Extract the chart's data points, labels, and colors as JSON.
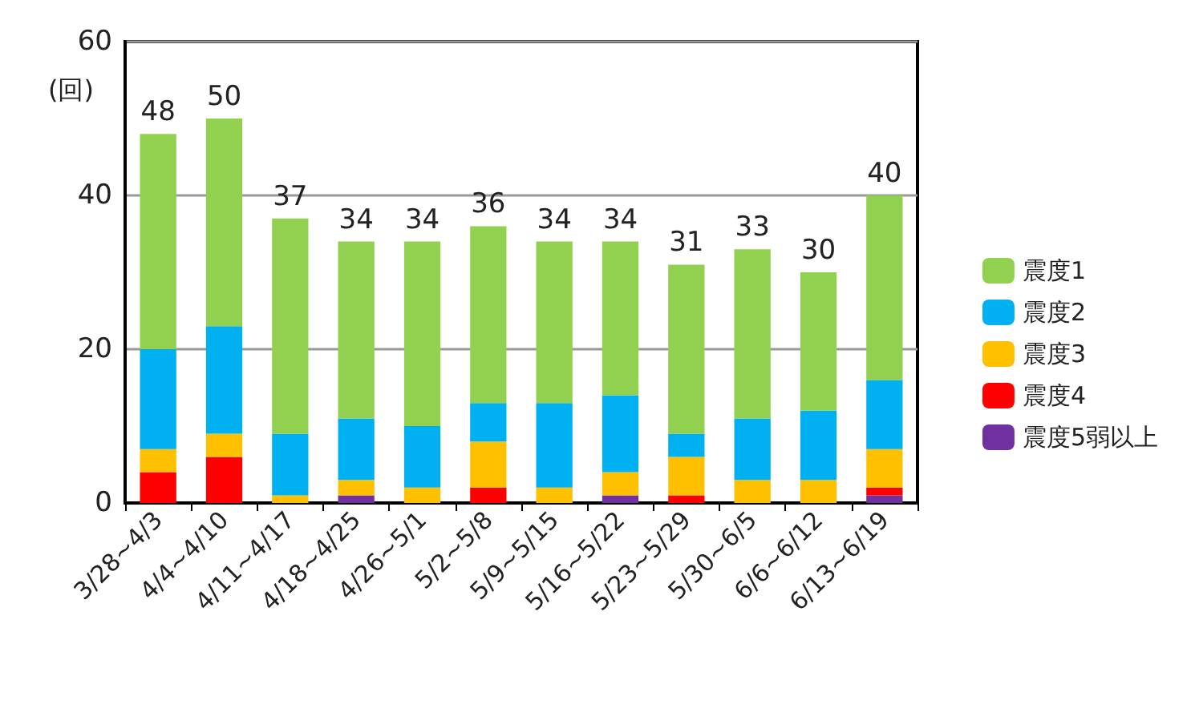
{
  "chart_data": {
    "type": "bar",
    "stacked": true,
    "ylabel": "(回)",
    "categories": [
      "3/28~4/3",
      "4/4~4/10",
      "4/11~4/17",
      "4/18~4/25",
      "4/26~5/1",
      "5/2~5/8",
      "5/9~5/15",
      "5/16~5/22",
      "5/23~5/29",
      "5/30~6/5",
      "6/6~6/12",
      "6/13~6/19"
    ],
    "series": [
      {
        "name": "震度5弱以上",
        "color": "#7030a0",
        "values": [
          0,
          0,
          0,
          1,
          0,
          0,
          0,
          1,
          0,
          0,
          0,
          1
        ]
      },
      {
        "name": "震度4",
        "color": "#ff0000",
        "values": [
          4,
          6,
          0,
          0,
          0,
          2,
          0,
          0,
          1,
          0,
          0,
          1
        ]
      },
      {
        "name": "震度3",
        "color": "#ffc000",
        "values": [
          3,
          3,
          1,
          2,
          2,
          6,
          2,
          3,
          5,
          3,
          3,
          5
        ]
      },
      {
        "name": "震度2",
        "color": "#00b0f0",
        "values": [
          13,
          14,
          8,
          8,
          8,
          5,
          11,
          10,
          3,
          8,
          9,
          9
        ]
      },
      {
        "name": "震度1",
        "color": "#92d050",
        "values": [
          28,
          27,
          28,
          23,
          24,
          23,
          21,
          20,
          22,
          22,
          18,
          24
        ]
      }
    ],
    "totals": [
      "48",
      "50",
      "37",
      "34",
      "34",
      "36",
      "34",
      "34",
      "31",
      "33",
      "30",
      "40"
    ],
    "ylim": [
      0,
      60
    ],
    "yticks": [
      0,
      20,
      40,
      60
    ],
    "grid": "y",
    "legend": "right"
  }
}
